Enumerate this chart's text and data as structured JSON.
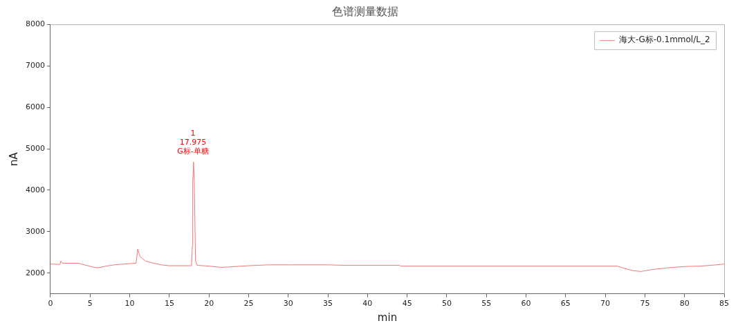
{
  "chart_data": {
    "type": "line",
    "title": "色谱测量数据",
    "xlabel": "min",
    "ylabel": "nA",
    "xlim": [
      0,
      85
    ],
    "xticks": [
      0,
      5,
      10,
      15,
      20,
      25,
      30,
      35,
      40,
      45,
      50,
      55,
      60,
      65,
      70,
      75,
      80,
      85
    ],
    "ylim": [
      1500,
      8000
    ],
    "yticks": [
      2000,
      3000,
      4000,
      5000,
      6000,
      7000,
      8000
    ],
    "grid": false,
    "legend": "top right",
    "marker": "none",
    "line_style": "solid",
    "annotations": [
      {
        "text": "1\n17.975\nG标-单糖",
        "x": 17.975,
        "y": 4680
      }
    ],
    "series": [
      {
        "name": "海大-G标-0.1mmol/L_2",
        "color": "#f07878",
        "x": [
          0,
          1.2,
          1.3,
          1.5,
          3.5,
          5.5,
          6,
          7,
          8,
          10,
          10.8,
          11.0,
          11.3,
          12,
          13,
          14,
          15,
          17.8,
          17.9,
          17.95,
          18.05,
          18.15,
          18.3,
          18.5,
          20,
          21.5,
          22.5,
          25,
          27.5,
          30,
          35,
          37,
          44,
          44.2,
          55,
          71.5,
          72.5,
          73.5,
          74.5,
          76,
          78,
          80,
          82,
          84,
          85
        ],
        "values": [
          2220,
          2210,
          2290,
          2240,
          2240,
          2140,
          2130,
          2170,
          2200,
          2230,
          2240,
          2580,
          2400,
          2290,
          2240,
          2200,
          2180,
          2180,
          2660,
          4200,
          4680,
          4150,
          2300,
          2190,
          2170,
          2140,
          2150,
          2180,
          2200,
          2200,
          2200,
          2190,
          2190,
          2170,
          2170,
          2170,
          2110,
          2060,
          2040,
          2090,
          2130,
          2160,
          2170,
          2200,
          2220
        ]
      }
    ]
  }
}
